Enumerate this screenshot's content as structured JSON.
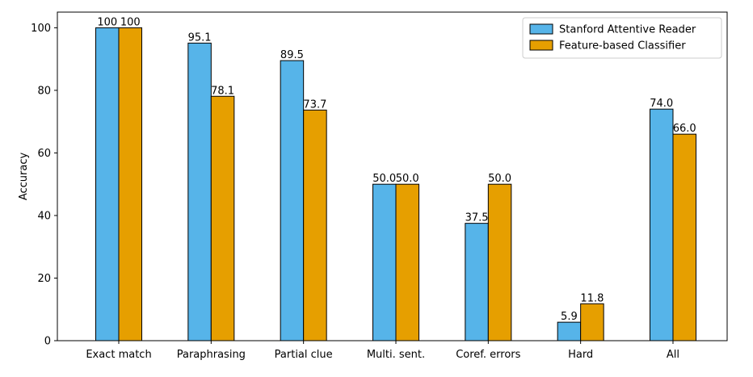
{
  "chart_data": {
    "type": "bar",
    "categories": [
      "Exact match",
      "Paraphrasing",
      "Partial clue",
      "Multi. sent.",
      "Coref. errors",
      "Hard",
      "All"
    ],
    "series": [
      {
        "name": "Stanford Attentive Reader",
        "color": "#56b4e9",
        "values": [
          100,
          95.1,
          89.5,
          50.0,
          37.5,
          5.9,
          74.0
        ],
        "labels": [
          "100",
          "95.1",
          "89.5",
          "50.0",
          "37.5",
          "5.9",
          "74.0"
        ]
      },
      {
        "name": "Feature-based Classifier",
        "color": "#e69f00",
        "values": [
          100,
          78.1,
          73.7,
          50.0,
          50.0,
          11.8,
          66.0
        ],
        "labels": [
          "100",
          "78.1",
          "73.7",
          "50.0",
          "50.0",
          "11.8",
          "66.0"
        ]
      }
    ],
    "title": "",
    "xlabel": "",
    "ylabel": "Accuracy",
    "ylim": [
      0,
      105
    ],
    "yticks": [
      0,
      20,
      40,
      60,
      80,
      100
    ],
    "grid": false,
    "legend_position": "top-right"
  }
}
